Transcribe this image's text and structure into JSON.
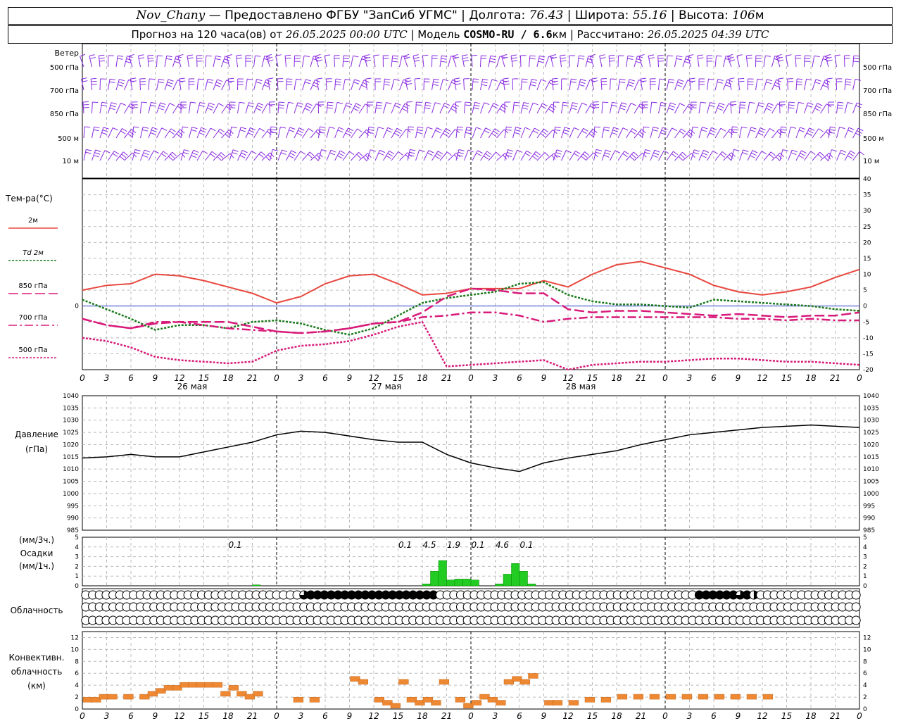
{
  "header": {
    "station": "Nov_Chany",
    "provider": "— Предоставлено ФГБУ \"ЗапСиб УГМС\"",
    "lon_label": "Долгота:",
    "lon": "76.43",
    "lat_label": "Широта:",
    "lat": "55.16",
    "alt_label": "Высота:",
    "alt": "106",
    "alt_unit": "м",
    "forecast_label": "Прогноз на 120 часа(ов) от",
    "forecast_from": "26.05.2025 00:00 UTC",
    "model_label": "Модель",
    "model": "COSMO-RU / 6.6",
    "model_unit": "км",
    "calc_label": "Рассчитано:",
    "calc_time": "26.05.2025 04:39 UTC"
  },
  "labels": {
    "wind": "Ветер",
    "wind_levels": [
      "500 гПа",
      "700 гПа",
      "850 гПа",
      "500 м",
      "10 м"
    ],
    "temp": "Тем-ра(°С)",
    "temp_series": [
      "2м",
      "Td 2м",
      "850 гПа",
      "700 гПа",
      "500 гПа"
    ],
    "pressure_1": "Давление",
    "pressure_2": "(гПа)",
    "precip_1": "(мм/3ч.)",
    "precip_2": "Осадки",
    "precip_3": "(мм/1ч.)",
    "cloud": "Облачность",
    "conv_1": "Конвективн.",
    "conv_2": "облачность",
    "conv_3": "(км)"
  },
  "colors": {
    "t2m": "#e8473f",
    "td2m": "#1a7a1a",
    "t850": "#d81b7a",
    "t700": "#d81b7a",
    "t500": "#d81b7a",
    "wind": "#8a2be2",
    "pressure": "#000000",
    "precip": "#22cc22",
    "conv": "#ee8833",
    "zero_line": "#3344cc"
  },
  "chart_data": [
    {
      "type": "line",
      "x_hours": [
        0,
        3,
        6,
        9,
        12,
        15,
        18,
        21,
        24,
        27,
        30,
        33,
        36,
        39,
        42,
        45,
        48,
        51,
        54,
        57,
        60,
        63,
        66,
        69,
        72,
        75,
        78,
        81,
        84,
        87,
        90,
        93,
        96
      ],
      "tick_labels": [
        "0",
        "3",
        "6",
        "9",
        "12",
        "15",
        "18",
        "21"
      ],
      "date_labels": [
        "26 мая",
        "27 мая",
        "28 мая"
      ],
      "ylim": [
        -20,
        40
      ],
      "yticks": [
        40,
        35,
        30,
        25,
        20,
        15,
        10,
        5,
        0,
        -5,
        -10,
        -15,
        -20
      ],
      "series": [
        {
          "name": "2м",
          "values": [
            5,
            6.5,
            7,
            10,
            9.5,
            8,
            6,
            4,
            1,
            3,
            7,
            9.5,
            10,
            7,
            3.5,
            4,
            5.5,
            5.5,
            5.5,
            8,
            6,
            10,
            13,
            14,
            12,
            10,
            6.5,
            4.5,
            3.5,
            4.5,
            6,
            9,
            11.5
          ]
        },
        {
          "name": "Td 2м",
          "values": [
            2,
            -1,
            -4,
            -7.5,
            -6,
            -6,
            -7,
            -5,
            -4.5,
            -5.5,
            -7.5,
            -9,
            -7,
            -3,
            1,
            2.5,
            3.5,
            4.5,
            7,
            7.5,
            3.5,
            1.5,
            0.5,
            0.5,
            0,
            -0.5,
            2,
            1.5,
            1,
            0.5,
            0,
            -1,
            -1.5
          ]
        },
        {
          "name": "850 гПа",
          "values": [
            -4,
            -6,
            -7,
            -5.5,
            -5,
            -5,
            -5,
            -6.5,
            -8,
            -8.5,
            -8,
            -7,
            -5.5,
            -5,
            -2,
            3,
            5.5,
            5,
            4,
            4,
            -1,
            -2,
            -1.5,
            -1.5,
            -2,
            -2.5,
            -3,
            -2.5,
            -3,
            -3.5,
            -3,
            -3,
            -2
          ]
        },
        {
          "name": "700 гПа",
          "values": [
            -4,
            -6,
            -7,
            -5,
            -5,
            -6,
            -7,
            -7.5,
            -8,
            -8.5,
            -8,
            -7,
            -5.5,
            -5,
            -3.5,
            -3,
            -2,
            -2,
            -3,
            -5,
            -4,
            -3.5,
            -3.5,
            -3.5,
            -3.5,
            -3.5,
            -3.5,
            -4,
            -4,
            -4.5,
            -4,
            -4.5,
            -4.5
          ]
        },
        {
          "name": "500 гПа",
          "values": [
            -10,
            -11,
            -13,
            -16,
            -17,
            -17.5,
            -18,
            -17.5,
            -14,
            -12.5,
            -12,
            -11,
            -9,
            -6.5,
            -5,
            -19,
            -18.5,
            -18,
            -17.5,
            -17,
            -20,
            -18.5,
            -18,
            -17.5,
            -17.5,
            -17,
            -16.5,
            -16.5,
            -17,
            -17.5,
            -17.5,
            -18,
            -18.5
          ]
        }
      ]
    },
    {
      "type": "line",
      "x_hours": [
        0,
        3,
        6,
        9,
        12,
        15,
        18,
        21,
        24,
        27,
        30,
        33,
        36,
        39,
        42,
        45,
        48,
        51,
        54,
        57,
        60,
        63,
        66,
        69,
        72,
        75,
        78,
        81,
        84,
        87,
        90,
        93,
        96
      ],
      "ylim": [
        985,
        1040
      ],
      "yticks": [
        1040,
        1035,
        1030,
        1025,
        1020,
        1015,
        1010,
        1005,
        1000,
        995,
        990,
        985
      ],
      "series": [
        {
          "name": "",
          "values": [
            1014.5,
            1015,
            1016,
            1015,
            1015,
            1017,
            1019,
            1021,
            1024,
            1025.5,
            1025,
            1023.5,
            1022,
            1021,
            1021,
            1016,
            1012.5,
            1010.5,
            1009,
            1012.5,
            1014.5,
            1016,
            1017.5,
            1020,
            1022,
            1024,
            1025,
            1026,
            1027,
            1027.5,
            1028,
            1027.5,
            1027
          ]
        }
      ]
    },
    {
      "type": "bar",
      "x_hours": [
        21,
        42,
        43,
        44,
        45,
        46,
        47,
        48,
        51,
        52,
        53,
        54,
        55
      ],
      "values_mm_1h": [
        0.1,
        0.2,
        1.5,
        2.6,
        0.6,
        0.7,
        0.7,
        0.6,
        0.2,
        1.2,
        2.3,
        1.5,
        0.2
      ],
      "ylim": [
        0,
        5
      ],
      "yticks": [
        5,
        4,
        3,
        2,
        1,
        0
      ],
      "annotations_hours": [
        18,
        39,
        42,
        45,
        48,
        51,
        54
      ],
      "annotations": [
        "0.1",
        "0.1",
        "4.5",
        "1.9",
        "0.1",
        "4.6",
        "0.1"
      ]
    },
    {
      "type": "bar",
      "x_hours": [
        0,
        1,
        2,
        3,
        5,
        7,
        8,
        9,
        10,
        11,
        12,
        13,
        14,
        15,
        16,
        17,
        18,
        19,
        20,
        21,
        26,
        28,
        33,
        34,
        36,
        37,
        38,
        39,
        40,
        41,
        42,
        43,
        44,
        46,
        47,
        48,
        49,
        50,
        51,
        52,
        53,
        54,
        55,
        57,
        58,
        60,
        62,
        64,
        66,
        68,
        70,
        72,
        74,
        76,
        78,
        80,
        82,
        84
      ],
      "values_km": [
        1.5,
        1.5,
        2,
        2,
        2,
        2,
        2.5,
        3,
        3.5,
        3.5,
        4,
        4,
        4,
        4,
        4,
        2.5,
        3.5,
        2.5,
        2,
        2.5,
        1.5,
        1.5,
        5,
        4.5,
        1.5,
        1,
        0.5,
        4.5,
        1.5,
        1,
        1.5,
        1,
        4.5,
        1.5,
        0.5,
        1,
        2,
        1.5,
        1,
        4.5,
        5,
        4.5,
        5.5,
        1,
        1,
        1,
        1.5,
        1.5,
        2,
        2,
        2,
        2,
        2,
        2,
        2,
        2,
        2,
        2
      ],
      "ylim": [
        0,
        13
      ],
      "yticks": [
        12,
        10,
        8,
        6,
        4,
        2,
        0
      ]
    }
  ],
  "cloud_cover": {
    "rows": [
      "000000000000000000000000000000003444444444444444444400000000000000000000000000000000000000444444342000000000000000",
      "000000000000000000000000000000000000000000000000000000000000000000000000000000000000000000000000000000000000000000",
      "000000000000000000000000000000000000000000000000000000000000000000000000000000000000000000000000000000000000000000"
    ]
  }
}
